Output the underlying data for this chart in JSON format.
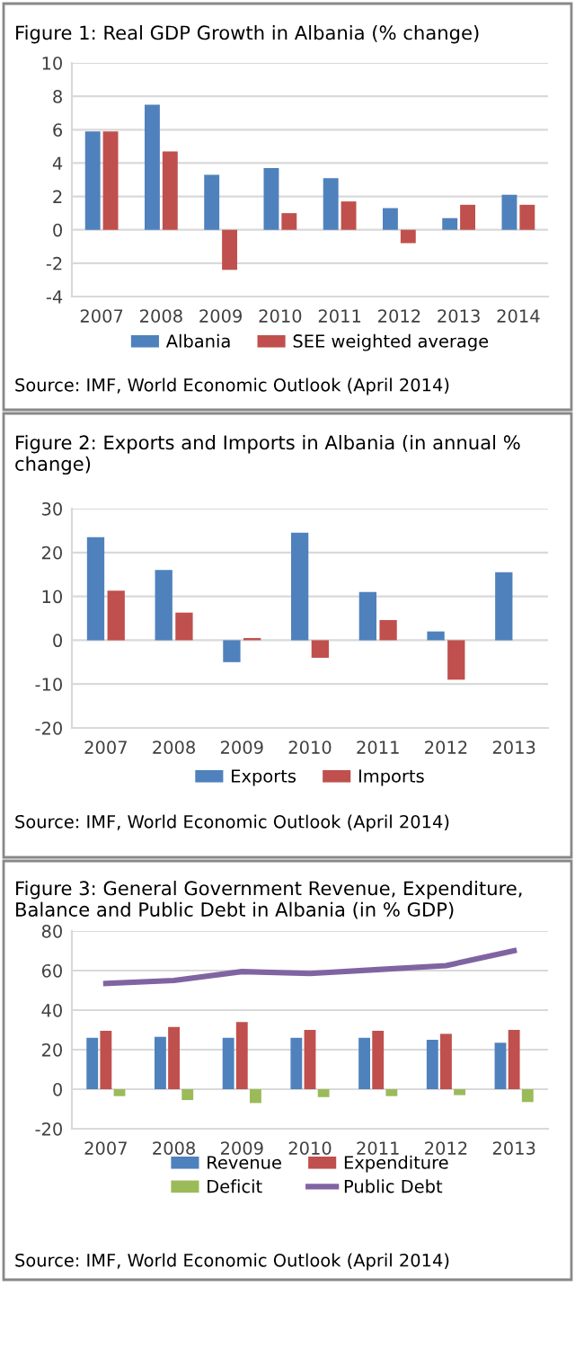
{
  "chart_data": [
    {
      "type": "bar",
      "title": "Figure 1: Real GDP Growth in Albania (% change)",
      "categories": [
        "2007",
        "2008",
        "2009",
        "2010",
        "2011",
        "2012",
        "2013",
        "2014"
      ],
      "series": [
        {
          "name": "Albania",
          "color": "#4f81bd",
          "values": [
            5.9,
            7.5,
            3.3,
            3.7,
            3.1,
            1.3,
            0.7,
            2.1
          ]
        },
        {
          "name": "SEE weighted average",
          "color": "#c0504d",
          "values": [
            5.9,
            4.7,
            -2.4,
            1.0,
            1.7,
            -0.8,
            1.5,
            1.5
          ]
        }
      ],
      "ylim": [
        -4,
        10
      ],
      "yticks": [
        -4,
        -2,
        0,
        2,
        4,
        6,
        8,
        10
      ],
      "grid": "y",
      "legend": "bottom",
      "annotations": [
        "Source: IMF, World Economic Outlook (April 2014)"
      ]
    },
    {
      "type": "bar",
      "title": "Figure 2: Exports and Imports in Albania (in annual % change)",
      "categories": [
        "2007",
        "2008",
        "2009",
        "2010",
        "2011",
        "2012",
        "2013"
      ],
      "series": [
        {
          "name": "Exports",
          "color": "#4f81bd",
          "values": [
            23.5,
            16,
            -5,
            24.5,
            11,
            2,
            15.5
          ]
        },
        {
          "name": "Imports",
          "color": "#c0504d",
          "values": [
            11.3,
            6.3,
            0.5,
            -4,
            4.6,
            -9,
            null
          ]
        }
      ],
      "ylim": [
        -20,
        30
      ],
      "yticks": [
        -20,
        -10,
        0,
        10,
        20,
        30
      ],
      "grid": "y",
      "legend": "bottom",
      "annotations": [
        "Source: IMF, World Economic Outlook (April 2014)"
      ]
    },
    {
      "type": "bar",
      "title": "Figure 3: General Government Revenue, Expenditure, Balance and Public Debt in Albania (in % GDP)",
      "categories": [
        "2007",
        "2008",
        "2009",
        "2010",
        "2011",
        "2012",
        "2013"
      ],
      "series": [
        {
          "name": "Revenue",
          "color": "#4f81bd",
          "values": [
            26,
            26.5,
            26,
            26,
            26,
            25,
            23.5
          ]
        },
        {
          "name": "Expenditure",
          "color": "#c0504d",
          "values": [
            29.5,
            31.5,
            34,
            30,
            29.5,
            28,
            30
          ]
        },
        {
          "name": "Deficit",
          "color": "#9bbb59",
          "values": [
            -3.5,
            -5.5,
            -7,
            -4,
            -3.5,
            -3,
            -6.5
          ]
        },
        {
          "name": "Public Debt",
          "color": "#8064a2",
          "type": "line",
          "values": [
            53.5,
            55,
            59.5,
            58.5,
            60.5,
            62.5,
            70
          ]
        }
      ],
      "ylim": [
        -20,
        80
      ],
      "yticks": [
        -20,
        0,
        20,
        40,
        60,
        80
      ],
      "grid": "y",
      "legend": "bottom",
      "annotations": [
        "Source: IMF, World Economic Outlook (April 2014)"
      ]
    }
  ]
}
